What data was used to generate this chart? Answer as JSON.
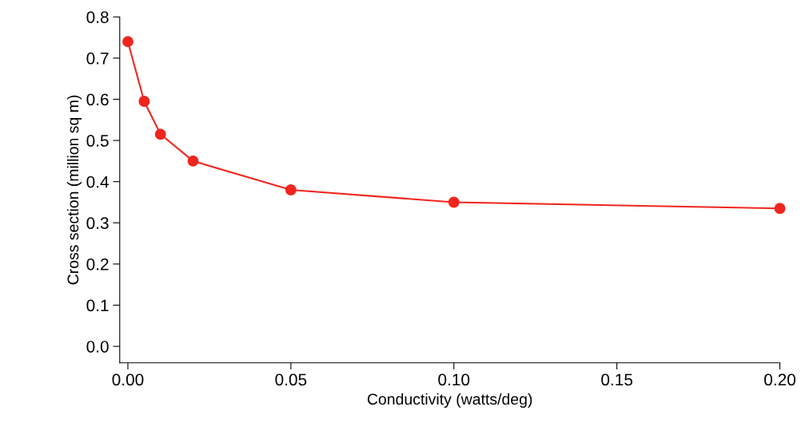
{
  "chart_data": {
    "type": "line",
    "xlabel": "Conductivity (watts/deg)",
    "ylabel": "Cross section (million sq m)",
    "x": [
      0,
      0.005,
      0.01,
      0.02,
      0.05,
      0.1,
      0.2
    ],
    "series": [
      {
        "color": "#f0261e",
        "values": [
          0.74,
          0.595,
          0.515,
          0.45,
          0.38,
          0.35,
          0.335
        ]
      }
    ],
    "marker": "circle",
    "line_style": "solid",
    "grid": false,
    "xlim": [
      -0.0025,
      0.2
    ],
    "ylim": [
      -0.04,
      0.8
    ],
    "xticks": [
      {
        "value": 0,
        "label": "0.00"
      },
      {
        "value": 0.05,
        "label": "0.05"
      },
      {
        "value": 0.1,
        "label": "0.10"
      },
      {
        "value": 0.15,
        "label": "0.15"
      },
      {
        "value": 0.2,
        "label": "0.20"
      }
    ],
    "yticks": [
      {
        "value": 0,
        "label": "0.0"
      },
      0.1,
      0.2,
      0.3,
      0.4,
      0.5,
      0.6,
      0.7,
      0.8
    ]
  }
}
